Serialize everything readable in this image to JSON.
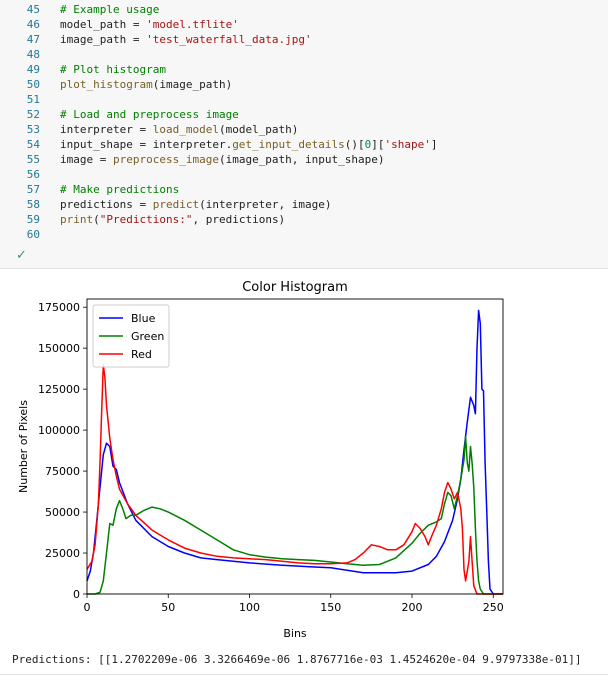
{
  "code": {
    "lines": [
      {
        "num": "45",
        "tokens": [
          {
            "t": "# Example usage",
            "c": "cm"
          }
        ]
      },
      {
        "num": "46",
        "tokens": [
          {
            "t": "model_path = ",
            "c": ""
          },
          {
            "t": "'model.tflite'",
            "c": "st"
          }
        ]
      },
      {
        "num": "47",
        "tokens": [
          {
            "t": "image_path = ",
            "c": ""
          },
          {
            "t": "'test_waterfall_data.jpg'",
            "c": "st"
          }
        ]
      },
      {
        "num": "48",
        "tokens": []
      },
      {
        "num": "49",
        "tokens": [
          {
            "t": "# Plot histogram",
            "c": "cm"
          }
        ]
      },
      {
        "num": "50",
        "tokens": [
          {
            "t": "plot_histogram",
            "c": "fn"
          },
          {
            "t": "(image_path)",
            "c": ""
          }
        ]
      },
      {
        "num": "51",
        "tokens": []
      },
      {
        "num": "52",
        "tokens": [
          {
            "t": "# Load and preprocess image",
            "c": "cm"
          }
        ]
      },
      {
        "num": "53",
        "tokens": [
          {
            "t": "interpreter = ",
            "c": ""
          },
          {
            "t": "load_model",
            "c": "fn"
          },
          {
            "t": "(model_path)",
            "c": ""
          }
        ]
      },
      {
        "num": "54",
        "tokens": [
          {
            "t": "input_shape = interpreter.",
            "c": ""
          },
          {
            "t": "get_input_details",
            "c": "fn"
          },
          {
            "t": "()[",
            "c": ""
          },
          {
            "t": "0",
            "c": "nm"
          },
          {
            "t": "][",
            "c": ""
          },
          {
            "t": "'shape'",
            "c": "st"
          },
          {
            "t": "]",
            "c": ""
          }
        ]
      },
      {
        "num": "55",
        "tokens": [
          {
            "t": "image = ",
            "c": ""
          },
          {
            "t": "preprocess_image",
            "c": "fn"
          },
          {
            "t": "(image_path, input_shape)",
            "c": ""
          }
        ]
      },
      {
        "num": "56",
        "tokens": []
      },
      {
        "num": "57",
        "tokens": [
          {
            "t": "# Make predictions",
            "c": "cm"
          }
        ]
      },
      {
        "num": "58",
        "tokens": [
          {
            "t": "predictions = ",
            "c": ""
          },
          {
            "t": "predict",
            "c": "fn"
          },
          {
            "t": "(interpreter, image)",
            "c": ""
          }
        ]
      },
      {
        "num": "59",
        "tokens": [
          {
            "t": "print",
            "c": "fn"
          },
          {
            "t": "(",
            "c": ""
          },
          {
            "t": "\"Predictions:\"",
            "c": "st"
          },
          {
            "t": ", predictions)",
            "c": ""
          }
        ]
      },
      {
        "num": "60",
        "tokens": []
      }
    ]
  },
  "status": {
    "icon": "checkmark-icon",
    "symbol": "✓"
  },
  "chart_data": {
    "type": "line",
    "title": "Color Histogram",
    "xlabel": "Bins",
    "ylabel": "Number of Pixels",
    "xlim": [
      0,
      256
    ],
    "ylim": [
      0,
      180000
    ],
    "xticks": [
      0,
      50,
      100,
      150,
      200,
      250
    ],
    "yticks": [
      0,
      25000,
      50000,
      75000,
      100000,
      125000,
      150000,
      175000
    ],
    "legend_position": "top-left",
    "series": [
      {
        "name": "Blue",
        "color": "#0000ff",
        "points": [
          [
            0,
            8000
          ],
          [
            2,
            14000
          ],
          [
            4,
            25000
          ],
          [
            6,
            45000
          ],
          [
            8,
            65000
          ],
          [
            10,
            85000
          ],
          [
            12,
            92000
          ],
          [
            14,
            90000
          ],
          [
            16,
            78000
          ],
          [
            18,
            76000
          ],
          [
            20,
            68000
          ],
          [
            25,
            55000
          ],
          [
            30,
            45000
          ],
          [
            40,
            35000
          ],
          [
            50,
            29000
          ],
          [
            60,
            25000
          ],
          [
            70,
            22000
          ],
          [
            80,
            21000
          ],
          [
            100,
            19000
          ],
          [
            120,
            17500
          ],
          [
            140,
            16500
          ],
          [
            150,
            16000
          ],
          [
            160,
            14500
          ],
          [
            170,
            13000
          ],
          [
            180,
            13000
          ],
          [
            190,
            13000
          ],
          [
            200,
            14000
          ],
          [
            210,
            18000
          ],
          [
            215,
            23000
          ],
          [
            220,
            32000
          ],
          [
            225,
            45000
          ],
          [
            228,
            58000
          ],
          [
            230,
            70000
          ],
          [
            232,
            88000
          ],
          [
            234,
            105000
          ],
          [
            236,
            120000
          ],
          [
            238,
            115000
          ],
          [
            239,
            110000
          ],
          [
            240,
            150000
          ],
          [
            241,
            173000
          ],
          [
            242,
            165000
          ],
          [
            243,
            125000
          ],
          [
            244,
            124000
          ],
          [
            245,
            80000
          ],
          [
            246,
            50000
          ],
          [
            247,
            20000
          ],
          [
            248,
            3000
          ],
          [
            250,
            0
          ],
          [
            256,
            0
          ]
        ]
      },
      {
        "name": "Green",
        "color": "#008000",
        "points": [
          [
            0,
            0
          ],
          [
            5,
            0
          ],
          [
            8,
            1000
          ],
          [
            10,
            8000
          ],
          [
            12,
            25000
          ],
          [
            14,
            43000
          ],
          [
            16,
            42000
          ],
          [
            18,
            52000
          ],
          [
            20,
            57000
          ],
          [
            22,
            52000
          ],
          [
            24,
            46000
          ],
          [
            27,
            48000
          ],
          [
            30,
            48000
          ],
          [
            35,
            51000
          ],
          [
            40,
            53000
          ],
          [
            45,
            52000
          ],
          [
            50,
            50000
          ],
          [
            60,
            45000
          ],
          [
            70,
            39000
          ],
          [
            80,
            33000
          ],
          [
            90,
            27000
          ],
          [
            100,
            24000
          ],
          [
            110,
            22500
          ],
          [
            120,
            21500
          ],
          [
            130,
            21000
          ],
          [
            140,
            20500
          ],
          [
            150,
            19500
          ],
          [
            160,
            18500
          ],
          [
            170,
            17500
          ],
          [
            180,
            18000
          ],
          [
            190,
            22000
          ],
          [
            200,
            31000
          ],
          [
            205,
            37000
          ],
          [
            210,
            42000
          ],
          [
            215,
            44000
          ],
          [
            218,
            46000
          ],
          [
            220,
            55000
          ],
          [
            222,
            62000
          ],
          [
            224,
            60000
          ],
          [
            226,
            52000
          ],
          [
            228,
            60000
          ],
          [
            230,
            70000
          ],
          [
            232,
            82000
          ],
          [
            233,
            96000
          ],
          [
            234,
            80000
          ],
          [
            235,
            75000
          ],
          [
            236,
            90000
          ],
          [
            237,
            80000
          ],
          [
            238,
            65000
          ],
          [
            239,
            40000
          ],
          [
            240,
            20000
          ],
          [
            241,
            8000
          ],
          [
            242,
            3000
          ],
          [
            244,
            0
          ],
          [
            256,
            0
          ]
        ]
      },
      {
        "name": "Red",
        "color": "#ff0000",
        "points": [
          [
            0,
            15000
          ],
          [
            3,
            20000
          ],
          [
            5,
            30000
          ],
          [
            7,
            55000
          ],
          [
            8,
            80000
          ],
          [
            9,
            110000
          ],
          [
            10,
            140000
          ],
          [
            11,
            132000
          ],
          [
            12,
            115000
          ],
          [
            14,
            95000
          ],
          [
            16,
            82000
          ],
          [
            18,
            72000
          ],
          [
            20,
            64000
          ],
          [
            25,
            55000
          ],
          [
            30,
            48000
          ],
          [
            40,
            39000
          ],
          [
            50,
            33000
          ],
          [
            60,
            28000
          ],
          [
            70,
            25000
          ],
          [
            80,
            23000
          ],
          [
            90,
            22000
          ],
          [
            100,
            21500
          ],
          [
            110,
            21000
          ],
          [
            120,
            20000
          ],
          [
            130,
            19000
          ],
          [
            140,
            18500
          ],
          [
            150,
            18500
          ],
          [
            160,
            19000
          ],
          [
            165,
            21000
          ],
          [
            170,
            25000
          ],
          [
            175,
            30000
          ],
          [
            180,
            29000
          ],
          [
            185,
            27000
          ],
          [
            190,
            27000
          ],
          [
            195,
            30000
          ],
          [
            200,
            38000
          ],
          [
            202,
            43000
          ],
          [
            205,
            40000
          ],
          [
            208,
            35000
          ],
          [
            210,
            30000
          ],
          [
            212,
            35000
          ],
          [
            215,
            42000
          ],
          [
            218,
            52000
          ],
          [
            220,
            62000
          ],
          [
            222,
            68000
          ],
          [
            224,
            64000
          ],
          [
            226,
            58000
          ],
          [
            228,
            62000
          ],
          [
            230,
            52000
          ],
          [
            231,
            40000
          ],
          [
            232,
            15000
          ],
          [
            233,
            8000
          ],
          [
            235,
            20000
          ],
          [
            236,
            35000
          ],
          [
            237,
            20000
          ],
          [
            238,
            5000
          ],
          [
            240,
            0
          ],
          [
            256,
            0
          ]
        ]
      }
    ]
  },
  "output": {
    "predictions_text": "Predictions: [[1.2702209e-06 3.3266469e-06 1.8767716e-03 1.4524620e-04 9.9797338e-01]]"
  }
}
